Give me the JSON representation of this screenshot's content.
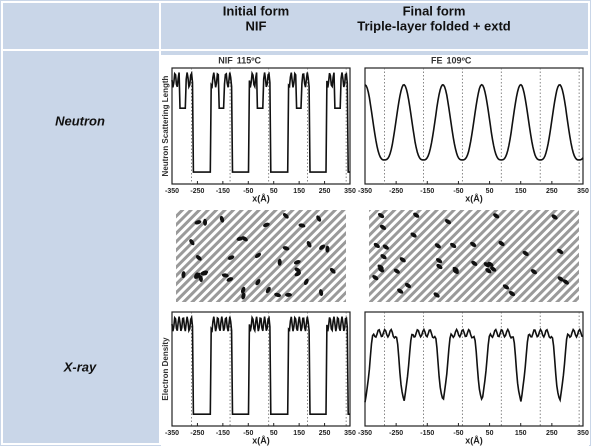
{
  "header": {
    "initial": {
      "title": "Initial form",
      "subtitle": "NIF"
    },
    "final": {
      "title": "Final form",
      "subtitle": "Triple-layer folded + extd"
    }
  },
  "rows": [
    {
      "label": "Neutron"
    },
    {
      "label": "X-ray"
    }
  ],
  "figure": {
    "panels": [
      {
        "sample": "NIF",
        "temperature": "115ºC"
      },
      {
        "sample": "FE",
        "temperature": "109ºC"
      }
    ],
    "ylabels": [
      "Neutron Scattering Length",
      "Electron Density"
    ],
    "xlabel": "x(Å)",
    "xticks": [
      -350,
      -250,
      -150,
      -50,
      50,
      150,
      250,
      350
    ]
  }
}
